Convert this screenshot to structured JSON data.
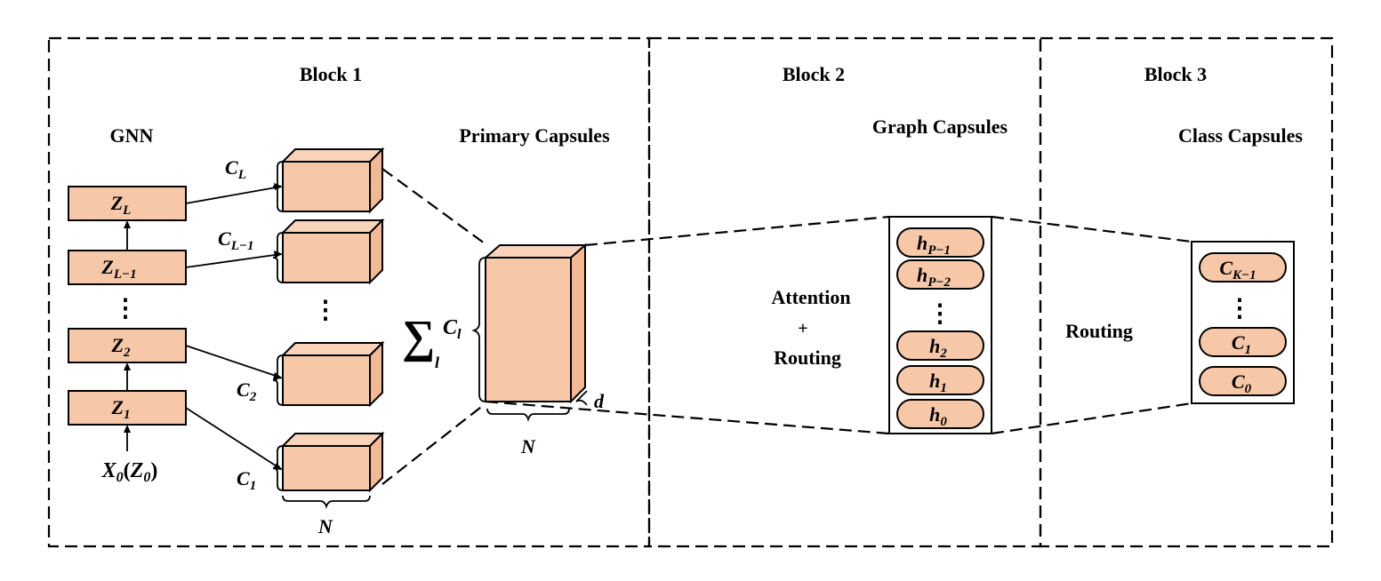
{
  "blocks": [
    {
      "title": "Block 1"
    },
    {
      "title": "Block 2"
    },
    {
      "title": "Block 3"
    }
  ],
  "block1": {
    "gnn_label": "GNN",
    "primary_label": "Primary Capsules",
    "layers": [
      {
        "base": "Z",
        "sub": "L"
      },
      {
        "base": "Z",
        "sub": "L−1"
      },
      {
        "base": "Z",
        "sub": "2"
      },
      {
        "base": "Z",
        "sub": "1"
      }
    ],
    "vdots": "⋮",
    "input": {
      "base": "X",
      "sub": "0",
      "paren_base": "Z",
      "paren_sub": "0"
    },
    "capsule_labels": [
      {
        "base": "C",
        "sub": "L"
      },
      {
        "base": "C",
        "sub": "L−1"
      },
      {
        "base": "C",
        "sub": "2"
      },
      {
        "base": "C",
        "sub": "1"
      }
    ],
    "n_label": "N",
    "sum_symbol": "∑",
    "sum_sub": "l",
    "sum_base": "C",
    "sum_base_sub": "l",
    "big_n_label": "N",
    "d_label": "d"
  },
  "block2": {
    "graph_label": "Graph Capsules",
    "op_line1": "Attention",
    "op_line2": "+",
    "op_line3": "Routing",
    "capsules": [
      {
        "base": "h",
        "sub": "P−1"
      },
      {
        "base": "h",
        "sub": "P−2"
      },
      {
        "base": "h",
        "sub": "2"
      },
      {
        "base": "h",
        "sub": "1"
      },
      {
        "base": "h",
        "sub": "0"
      }
    ]
  },
  "block3": {
    "class_label": "Class Capsules",
    "op": "Routing",
    "capsules": [
      {
        "base": "C",
        "sub": "K−1"
      },
      {
        "base": "C",
        "sub": "1"
      },
      {
        "base": "C",
        "sub": "0"
      }
    ]
  }
}
